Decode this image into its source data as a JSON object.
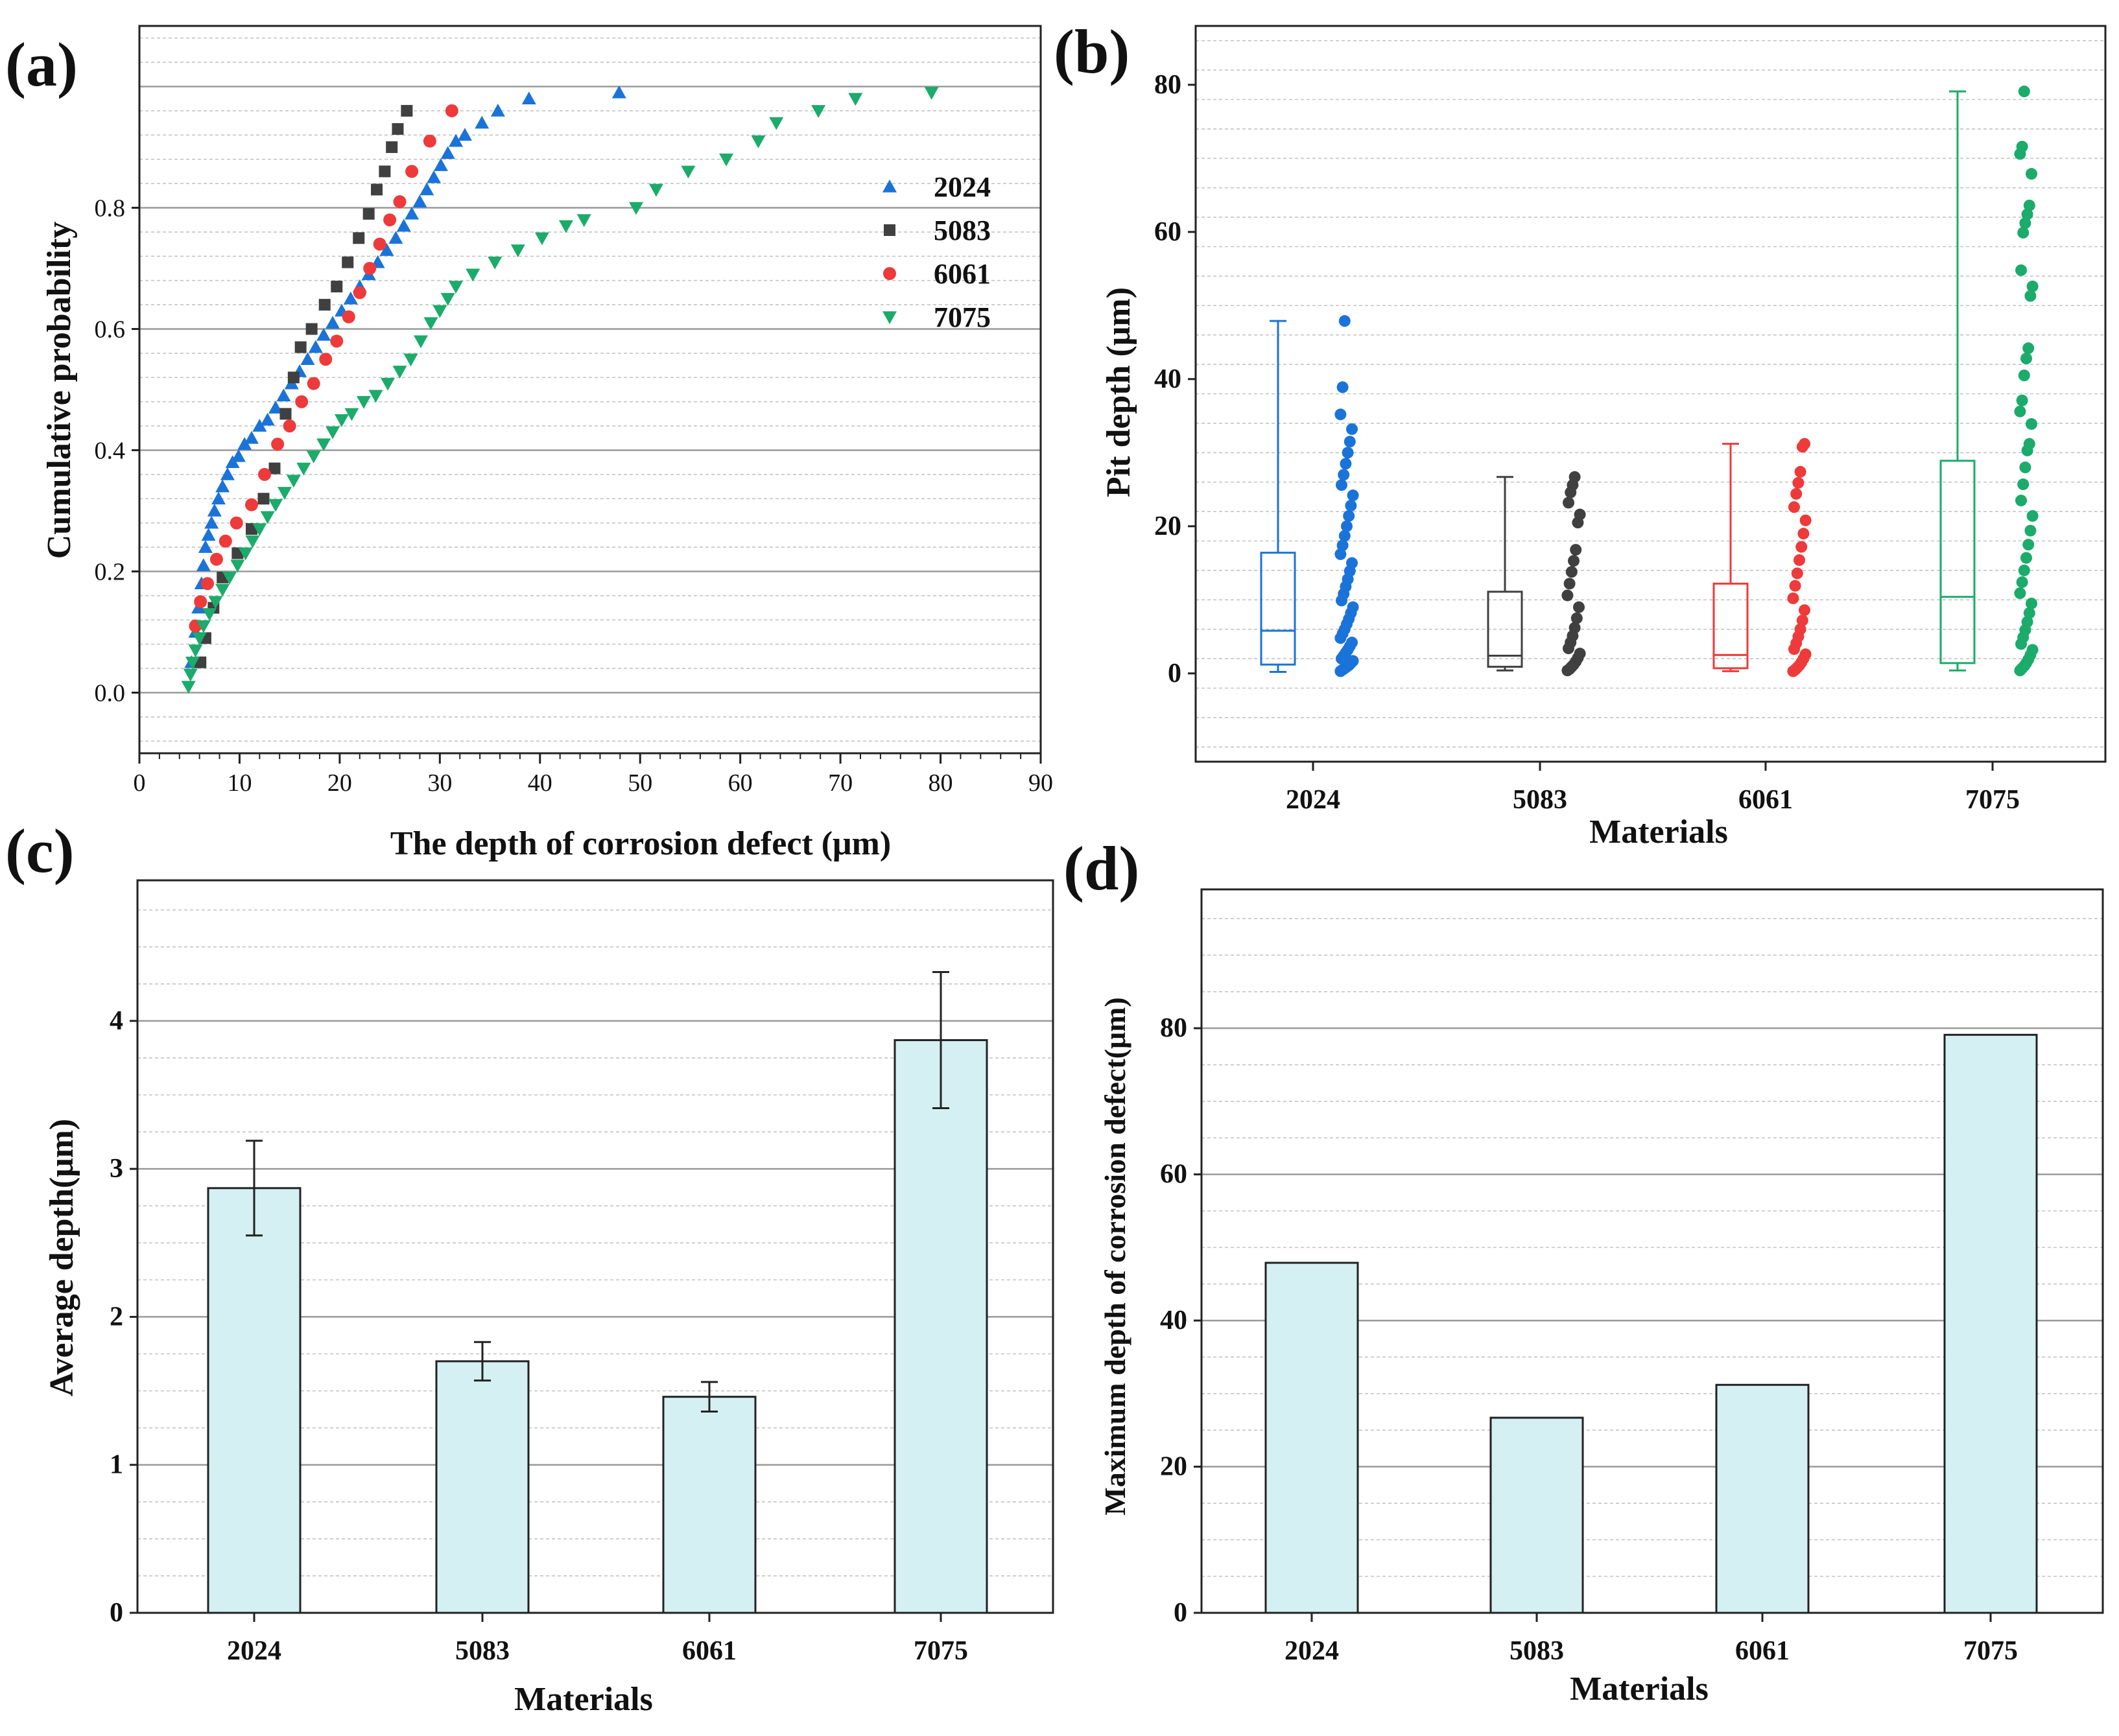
{
  "figure_panels": [
    "(a)",
    "(b)",
    "(c)",
    "(d)"
  ],
  "colors": {
    "2024": "#1a73d9",
    "5083": "#404040",
    "6061": "#ee3a3a",
    "7075": "#1bab6a",
    "bar_fill": "#d4f0f3",
    "bar_stroke": "#222222",
    "gridline": "#9a9a9a"
  },
  "chart_data": [
    {
      "panel": "(a)",
      "type": "scatter",
      "xlabel": "The depth of corrosion defect (μm)",
      "ylabel": "Cumulative probability",
      "xlim": [
        0,
        90
      ],
      "ylim": [
        -0.1,
        1.1
      ],
      "xticks": [
        0,
        10,
        20,
        30,
        40,
        50,
        60,
        70,
        80,
        90
      ],
      "yticks": [
        0.0,
        0.2,
        0.4,
        0.6,
        0.8
      ],
      "grid": true,
      "legend_position": "right-top",
      "series": [
        {
          "name": "2024",
          "marker": "triangle-up",
          "color_key": "2024",
          "x": [
            5.2,
            5.6,
            5.9,
            6.2,
            6.4,
            6.6,
            6.9,
            7.2,
            7.5,
            7.9,
            8.3,
            8.8,
            9.3,
            9.9,
            10.5,
            11.2,
            12,
            12.8,
            13.6,
            14.4,
            15.2,
            16,
            16.8,
            17.6,
            18.4,
            19.3,
            20.2,
            21.1,
            22,
            22.9,
            23.8,
            24.7,
            25.6,
            26.4,
            27.2,
            28,
            28.7,
            29.4,
            30.1,
            30.8,
            31.6,
            32.5,
            34.2,
            35.8,
            38.9,
            47.9
          ],
          "y": [
            0.05,
            0.1,
            0.14,
            0.18,
            0.21,
            0.24,
            0.26,
            0.28,
            0.3,
            0.32,
            0.34,
            0.36,
            0.38,
            0.39,
            0.41,
            0.42,
            0.44,
            0.45,
            0.47,
            0.49,
            0.51,
            0.53,
            0.55,
            0.57,
            0.59,
            0.61,
            0.63,
            0.65,
            0.67,
            0.69,
            0.71,
            0.73,
            0.75,
            0.77,
            0.79,
            0.81,
            0.83,
            0.85,
            0.87,
            0.89,
            0.91,
            0.92,
            0.94,
            0.96,
            0.98,
            0.99
          ]
        },
        {
          "name": "5083",
          "marker": "square",
          "color_key": "5083",
          "x": [
            6.1,
            6.6,
            7.4,
            8.3,
            9.8,
            11.2,
            12.4,
            13.5,
            14.6,
            15.4,
            16.1,
            17.2,
            18.5,
            19.7,
            20.8,
            21.9,
            22.9,
            23.7,
            24.5,
            25.2,
            25.8,
            26.7
          ],
          "y": [
            0.05,
            0.09,
            0.14,
            0.19,
            0.23,
            0.27,
            0.32,
            0.37,
            0.46,
            0.52,
            0.57,
            0.6,
            0.64,
            0.67,
            0.71,
            0.75,
            0.79,
            0.83,
            0.86,
            0.9,
            0.93,
            0.96
          ]
        },
        {
          "name": "6061",
          "marker": "circle",
          "color_key": "6061",
          "x": [
            5.6,
            6.1,
            6.8,
            7.7,
            8.6,
            9.7,
            11.2,
            12.5,
            13.8,
            15,
            16.2,
            17.4,
            18.6,
            19.7,
            20.9,
            22,
            23,
            24,
            25,
            26,
            27.2,
            29,
            31.2
          ],
          "y": [
            0.11,
            0.15,
            0.18,
            0.22,
            0.25,
            0.28,
            0.31,
            0.36,
            0.41,
            0.44,
            0.48,
            0.51,
            0.55,
            0.58,
            0.62,
            0.66,
            0.7,
            0.74,
            0.78,
            0.81,
            0.86,
            0.91,
            0.96
          ]
        },
        {
          "name": "7075",
          "marker": "triangle-down",
          "color_key": "7075",
          "x": [
            4.9,
            5.1,
            5.3,
            5.6,
            6,
            6.4,
            7,
            7.6,
            8.3,
            9,
            9.8,
            10.6,
            11.3,
            12,
            12.8,
            13.6,
            14.5,
            15.4,
            16.4,
            17.4,
            18.4,
            19.3,
            20.2,
            21.2,
            22.4,
            23.6,
            24.8,
            26,
            27.1,
            28.1,
            29.1,
            30,
            30.8,
            31.6,
            33.3,
            35.5,
            37.8,
            40.2,
            42.6,
            44.4,
            49.6,
            51.6,
            54.8,
            58.6,
            61.8,
            63.6,
            67.8,
            71.5,
            79.1
          ],
          "y": [
            0.01,
            0.03,
            0.05,
            0.07,
            0.09,
            0.11,
            0.13,
            0.15,
            0.17,
            0.19,
            0.21,
            0.23,
            0.25,
            0.27,
            0.29,
            0.31,
            0.33,
            0.35,
            0.37,
            0.39,
            0.41,
            0.43,
            0.45,
            0.46,
            0.48,
            0.49,
            0.51,
            0.53,
            0.55,
            0.58,
            0.61,
            0.63,
            0.65,
            0.67,
            0.69,
            0.71,
            0.73,
            0.75,
            0.77,
            0.78,
            0.8,
            0.83,
            0.86,
            0.88,
            0.91,
            0.94,
            0.96,
            0.98,
            0.99
          ]
        }
      ]
    },
    {
      "panel": "(b)",
      "type": "box",
      "xlabel": "Materials",
      "ylabel": "Pit depth (μm)",
      "categories": [
        "2024",
        "5083",
        "6061",
        "7075"
      ],
      "ylim": [
        -12,
        88
      ],
      "yticks": [
        0,
        20,
        40,
        60,
        80
      ],
      "grid": true,
      "boxes": [
        {
          "name": "2024",
          "min": 0.2,
          "q1": 1.2,
          "median": 5.8,
          "q3": 16.4,
          "max": 47.9
        },
        {
          "name": "5083",
          "min": 0.4,
          "q1": 0.9,
          "median": 2.4,
          "q3": 11.1,
          "max": 26.7
        },
        {
          "name": "6061",
          "min": 0.3,
          "q1": 0.7,
          "median": 2.5,
          "q3": 12.2,
          "max": 31.2
        },
        {
          "name": "7075",
          "min": 0.4,
          "q1": 1.4,
          "median": 10.4,
          "q3": 28.9,
          "max": 79.1
        }
      ],
      "points": [
        {
          "name": "2024",
          "values": [
            0.3,
            0.5,
            0.7,
            0.9,
            1.1,
            1.4,
            1.7,
            2,
            2.4,
            2.8,
            3.2,
            3.7,
            4.2,
            4.8,
            5.4,
            6,
            6.7,
            7.4,
            8.2,
            9,
            9.9,
            10.8,
            11.8,
            12.8,
            13.9,
            15,
            16.2,
            17.4,
            18.7,
            20,
            21.4,
            22.8,
            24.2,
            25.6,
            27,
            28.5,
            30,
            31.5,
            33.2,
            35.2,
            38.9,
            47.9
          ]
        },
        {
          "name": "5083",
          "values": [
            0.4,
            0.6,
            0.9,
            1.2,
            1.6,
            2.1,
            2.7,
            3.4,
            4.2,
            5.1,
            6.2,
            7.5,
            9,
            10.6,
            12.2,
            13.8,
            15.3,
            16.8,
            20.5,
            21.6,
            23.2,
            24.6,
            25.6,
            26.7
          ]
        },
        {
          "name": "6061",
          "values": [
            0.3,
            0.5,
            0.8,
            1.1,
            1.5,
            2,
            2.6,
            3.3,
            4.1,
            5,
            6,
            7.2,
            8.6,
            10.2,
            11.9,
            13.6,
            15.4,
            17.2,
            19,
            20.8,
            22.6,
            24.4,
            25.9,
            27.4,
            30.8,
            31.2
          ]
        },
        {
          "name": "7075",
          "values": [
            0.4,
            0.7,
            1,
            1.4,
            1.9,
            2.5,
            3.2,
            4,
            4.9,
            5.9,
            7,
            8.2,
            9.5,
            10.9,
            12.4,
            14,
            15.7,
            17.5,
            19.4,
            21.4,
            23.5,
            25.7,
            28,
            30.3,
            31.2,
            33.9,
            35.6,
            37.1,
            40.5,
            42.8,
            44.2,
            51.3,
            52.6,
            54.8,
            59.9,
            61.2,
            62.4,
            63.6,
            67.9,
            70.6,
            71.6,
            79.1
          ]
        }
      ]
    },
    {
      "panel": "(c)",
      "type": "bar",
      "xlabel": "Materials",
      "ylabel": "Average depth(μm)",
      "categories": [
        "2024",
        "5083",
        "6061",
        "7075"
      ],
      "values": [
        2.87,
        1.7,
        1.46,
        3.87
      ],
      "errors": [
        0.32,
        0.13,
        0.1,
        0.46
      ],
      "ylim": [
        0,
        4.95
      ],
      "yticks": [
        0,
        1,
        2,
        3,
        4
      ],
      "grid": true
    },
    {
      "panel": "(d)",
      "type": "bar",
      "xlabel": "Materials",
      "ylabel": "Maximum depth of corrosion defect(μm)",
      "categories": [
        "2024",
        "5083",
        "6061",
        "7075"
      ],
      "values": [
        47.9,
        26.7,
        31.2,
        79.1
      ],
      "ylim": [
        0,
        99
      ],
      "yticks": [
        0,
        20,
        40,
        60,
        80
      ],
      "grid": true
    }
  ]
}
